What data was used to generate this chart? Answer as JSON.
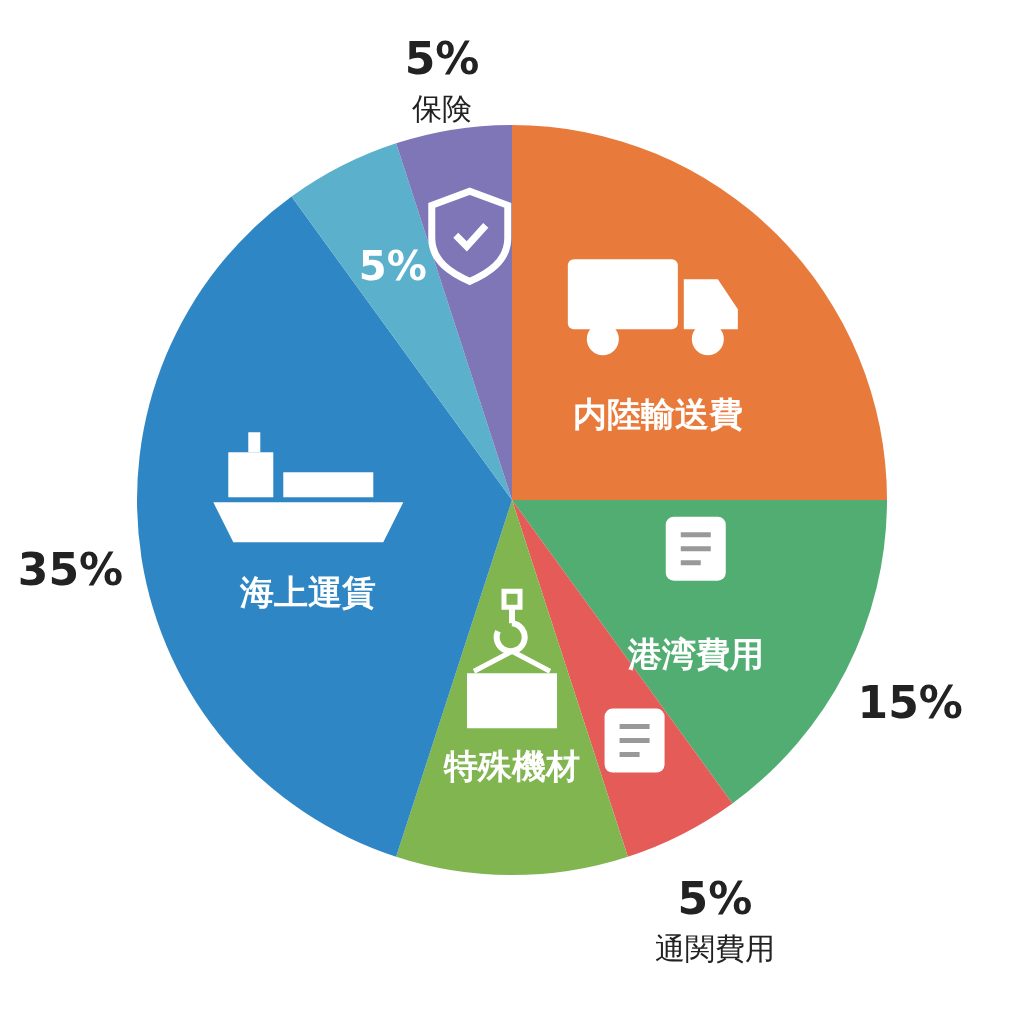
{
  "chart_data": {
    "type": "pie",
    "categories": [
      "内陸輸送費",
      "港湾費用",
      "通関費用",
      "特殊機材",
      "海上運賃",
      null,
      "保険"
    ],
    "values": [
      25,
      15,
      5,
      10,
      35,
      5,
      5
    ],
    "value_labels": [
      null,
      "15%",
      "5%",
      null,
      "35%",
      "5%",
      "5%"
    ],
    "colors": [
      "#e87b3c",
      "#52ad72",
      "#e55b57",
      "#80b550",
      "#2e86c4",
      "#5bb0cc",
      "#7f76b8"
    ]
  }
}
